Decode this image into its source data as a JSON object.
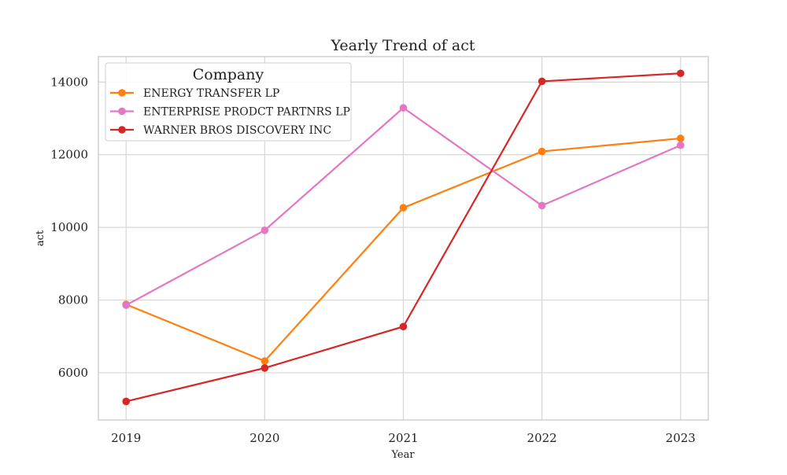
{
  "chart_data": {
    "type": "line",
    "title": "Yearly Trend of act",
    "xlabel": "Year",
    "ylabel": "act",
    "x": [
      "2019",
      "2020",
      "2021",
      "2022",
      "2023"
    ],
    "xlim": [
      2018.8,
      2023.2
    ],
    "ylim": [
      4700,
      14700
    ],
    "yticks": [
      6000,
      8000,
      10000,
      12000,
      14000
    ],
    "grid": true,
    "legend": {
      "title": "Company",
      "position": "top-left"
    },
    "series": [
      {
        "name": "ENERGY TRANSFER LP",
        "color": "#ff7f0e",
        "values": [
          7880,
          6320,
          10540,
          12090,
          12450
        ]
      },
      {
        "name": "ENTERPRISE PRODCT PARTNRS LP",
        "color": "#e377c2",
        "values": [
          7860,
          9920,
          13290,
          10600,
          12260
        ]
      },
      {
        "name": "WARNER BROS DISCOVERY INC",
        "color": "#d62728",
        "values": [
          5210,
          6130,
          7270,
          14020,
          14240
        ]
      }
    ]
  }
}
